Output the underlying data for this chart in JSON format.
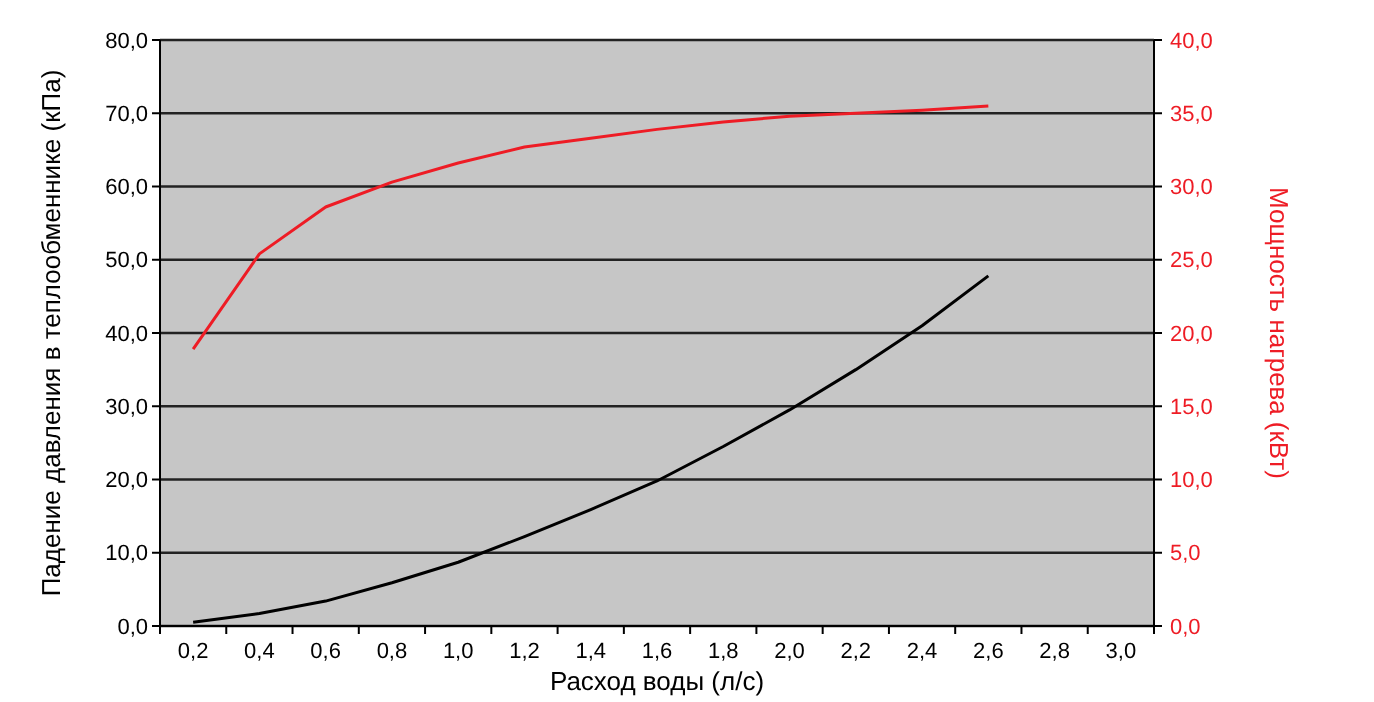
{
  "chart_data": {
    "type": "line",
    "xlabel": "Расход воды (л/с)",
    "ylabel": "Падение давления в теплообменнике (кПа)",
    "y2label": "Мощность нагрева (кВт)",
    "categories": [
      "0,2",
      "0,4",
      "0,6",
      "0,8",
      "1,0",
      "1,2",
      "1,4",
      "1,6",
      "1,8",
      "2,0",
      "2,2",
      "2,4",
      "2,6",
      "2,8",
      "3,0"
    ],
    "series": [
      {
        "color": "#000000",
        "values": [
          0.5,
          1.7,
          3.4,
          5.9,
          8.7,
          12.2,
          15.9,
          19.8,
          24.5,
          29.5,
          35,
          41,
          47.8,
          null,
          null
        ]
      },
      {
        "color": "#ee1c25",
        "axis": "y2",
        "values": [
          18.9,
          25.4,
          28.6,
          30.3,
          31.6,
          32.7,
          33.3,
          33.9,
          34.4,
          34.8,
          35.0,
          35.2,
          35.5,
          null,
          null
        ]
      }
    ],
    "ylim": [
      0,
      80
    ],
    "yticks": [
      {
        "value": 0,
        "label": "0,0"
      },
      {
        "value": 10,
        "label": "10,0"
      },
      {
        "value": 20,
        "label": "20,0"
      },
      {
        "value": 30,
        "label": "30,0"
      },
      {
        "value": 40,
        "label": "40,0"
      },
      {
        "value": 50,
        "label": "50,0"
      },
      {
        "value": 60,
        "label": "60,0"
      },
      {
        "value": 70,
        "label": "70,0"
      },
      {
        "value": 80,
        "label": "80,0"
      }
    ],
    "y2lim": [
      0,
      40
    ],
    "y2ticks": [
      {
        "value": 0,
        "label": "0,0"
      },
      {
        "value": 5,
        "label": "5,0"
      },
      {
        "value": 10,
        "label": "10,0"
      },
      {
        "value": 15,
        "label": "15,0"
      },
      {
        "value": 20,
        "label": "20,0"
      },
      {
        "value": 25,
        "label": "25,0"
      },
      {
        "value": 30,
        "label": "30,0"
      },
      {
        "value": 35,
        "label": "35,0"
      },
      {
        "value": 40,
        "label": "40,0"
      }
    ],
    "grid": "y",
    "marker": "none",
    "line_style": "solid"
  }
}
